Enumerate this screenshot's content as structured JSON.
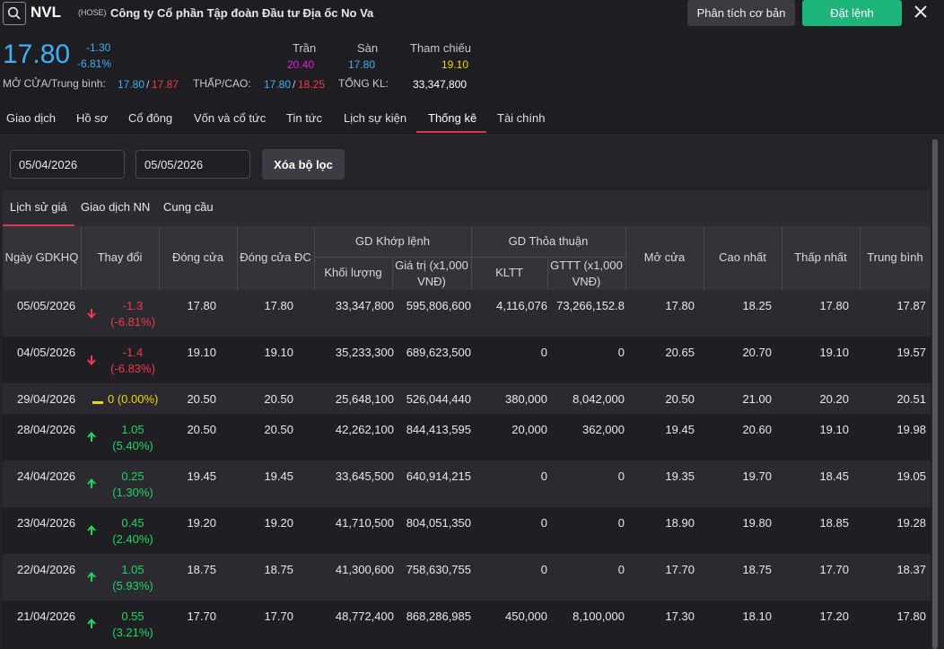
{
  "header": {
    "ticker": "NVL",
    "exchange": "(HOSE)",
    "company": "Công ty Cổ phần Tập đoàn Đầu tư Địa ốc No Va",
    "btn_analysis": "Phân tích cơ bản",
    "btn_order": "Đặt lệnh"
  },
  "quote": {
    "price": "17.80",
    "change": "-1.30",
    "change_pct": "-6.81%",
    "ceiling_label": "Trần",
    "ceiling": "20.40",
    "floor_label": "Sàn",
    "floor": "17.80",
    "ref_label": "Tham chiếu",
    "ref": "19.10",
    "open_avg_label": "MỞ CỬA/Trung bình:",
    "open": "17.80",
    "sep": "/",
    "avg": "17.87",
    "lowhigh_label": "THẤP/CAO:",
    "low": "17.80",
    "high": "18.25",
    "total_vol_label": "TỔNG KL:",
    "total_vol": "33,347,800"
  },
  "tabs": [
    "Giao dịch",
    "Hồ sơ",
    "Cổ đông",
    "Vốn và cổ tức",
    "Tin tức",
    "Lịch sự kiện",
    "Thống kê",
    "Tài chính"
  ],
  "filters": {
    "date_from": "05/04/2026",
    "date_to": "05/05/2026",
    "clear_label": "Xóa bộ lọc"
  },
  "subtabs": [
    "Lịch sử giá",
    "Giao dịch NN",
    "Cung cầu"
  ],
  "table": {
    "headers": {
      "date": "Ngày GDKHQ",
      "change": "Thay đổi",
      "close": "Đóng cửa",
      "close_adj": "Đóng cửa ĐC",
      "matched_group": "GD Khớp lệnh",
      "matched_vol": "Khối lượng",
      "matched_val_1": "Giá trị (x1,000",
      "matched_val_2": "VNĐ)",
      "deal_group": "GD Thỏa thuận",
      "deal_vol": "KLTT",
      "deal_val_1": "GTTT (x1,000",
      "deal_val_2": "VNĐ)",
      "open": "Mở cửa",
      "high": "Cao nhất",
      "low": "Thấp nhất",
      "avg": "Trung bình"
    },
    "rows": [
      {
        "date": "05/05/2026",
        "dir": "down",
        "chg": "-1.3",
        "pct": "(-6.81%)",
        "close": "17.80",
        "close_adj": "17.80",
        "vol": "33,347,800",
        "val": "595,806,600",
        "kltt": "4,116,076",
        "gttt": "73,266,152.8",
        "open": "17.80",
        "high": "18.25",
        "low": "17.80",
        "avg": "17.87"
      },
      {
        "date": "04/05/2026",
        "dir": "down",
        "chg": "-1.4",
        "pct": "(-6.83%)",
        "close": "19.10",
        "close_adj": "19.10",
        "vol": "35,233,300",
        "val": "689,623,500",
        "kltt": "0",
        "gttt": "0",
        "open": "20.65",
        "high": "20.70",
        "low": "19.10",
        "avg": "19.57"
      },
      {
        "date": "29/04/2026",
        "dir": "flat",
        "chg": "0 (0.00%)",
        "pct": "",
        "close": "20.50",
        "close_adj": "20.50",
        "vol": "25,648,100",
        "val": "526,044,440",
        "kltt": "380,000",
        "gttt": "8,042,000",
        "open": "20.50",
        "high": "21.00",
        "low": "20.20",
        "avg": "20.51"
      },
      {
        "date": "28/04/2026",
        "dir": "up",
        "chg": "1.05",
        "pct": "(5.40%)",
        "close": "20.50",
        "close_adj": "20.50",
        "vol": "42,262,100",
        "val": "844,413,595",
        "kltt": "20,000",
        "gttt": "362,000",
        "open": "19.45",
        "high": "20.60",
        "low": "19.10",
        "avg": "19.98"
      },
      {
        "date": "24/04/2026",
        "dir": "up",
        "chg": "0.25",
        "pct": "(1.30%)",
        "close": "19.45",
        "close_adj": "19.45",
        "vol": "33,645,500",
        "val": "640,914,215",
        "kltt": "0",
        "gttt": "0",
        "open": "19.35",
        "high": "19.70",
        "low": "18.45",
        "avg": "19.05"
      },
      {
        "date": "23/04/2026",
        "dir": "up",
        "chg": "0.45",
        "pct": "(2.40%)",
        "close": "19.20",
        "close_adj": "19.20",
        "vol": "41,710,500",
        "val": "804,051,350",
        "kltt": "0",
        "gttt": "0",
        "open": "18.90",
        "high": "19.80",
        "low": "18.85",
        "avg": "19.28"
      },
      {
        "date": "22/04/2026",
        "dir": "up",
        "chg": "1.05",
        "pct": "(5.93%)",
        "close": "18.75",
        "close_adj": "18.75",
        "vol": "41,300,600",
        "val": "758,630,755",
        "kltt": "0",
        "gttt": "0",
        "open": "17.70",
        "high": "18.75",
        "low": "17.70",
        "avg": "18.37"
      },
      {
        "date": "21/04/2026",
        "dir": "up",
        "chg": "0.55",
        "pct": "(3.21%)",
        "close": "17.70",
        "close_adj": "17.70",
        "vol": "48,772,400",
        "val": "868,286,985",
        "kltt": "450,000",
        "gttt": "8,100,000",
        "open": "17.30",
        "high": "18.10",
        "low": "17.20",
        "avg": "17.80"
      }
    ]
  },
  "colors": {
    "up": "#1ed760",
    "down": "#f03a4a",
    "reference": "#f0d800",
    "ceiling": "#e020e0",
    "floor": "#3fb0f5",
    "accent": "#e0354a",
    "order_button": "#1db57a"
  },
  "icons": {
    "search": "search-icon",
    "close": "close-icon",
    "up": "arrow-up-icon",
    "down": "arrow-down-icon",
    "flat": "flat-bar-icon"
  }
}
